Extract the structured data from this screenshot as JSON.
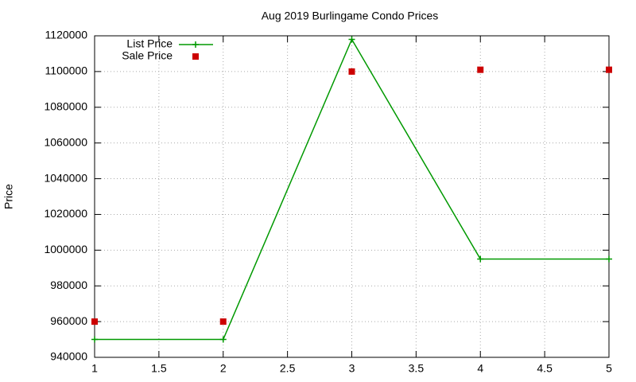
{
  "chart_data": {
    "type": "line",
    "title": "Aug 2019 Burlingame Condo Prices",
    "y_label": "Price",
    "x": [
      1,
      2,
      3,
      4,
      5
    ],
    "series": [
      {
        "name": "List Price",
        "color": "#009900",
        "style": "linespoints",
        "values": [
          950000,
          950000,
          1118000,
          995000,
          995000
        ]
      },
      {
        "name": "Sale Price",
        "color": "#cc0000",
        "style": "points",
        "values": [
          960000,
          960000,
          1100000,
          1101000,
          1101000
        ]
      }
    ],
    "xlim": [
      1,
      5
    ],
    "xticks": [
      1,
      1.5,
      2,
      2.5,
      3,
      3.5,
      4,
      4.5,
      5
    ],
    "ylim": [
      940000,
      1120000
    ],
    "yticks": [
      940000,
      960000,
      980000,
      1000000,
      1020000,
      1040000,
      1060000,
      1080000,
      1100000,
      1120000
    ],
    "grid": true,
    "legend": "top-left"
  }
}
